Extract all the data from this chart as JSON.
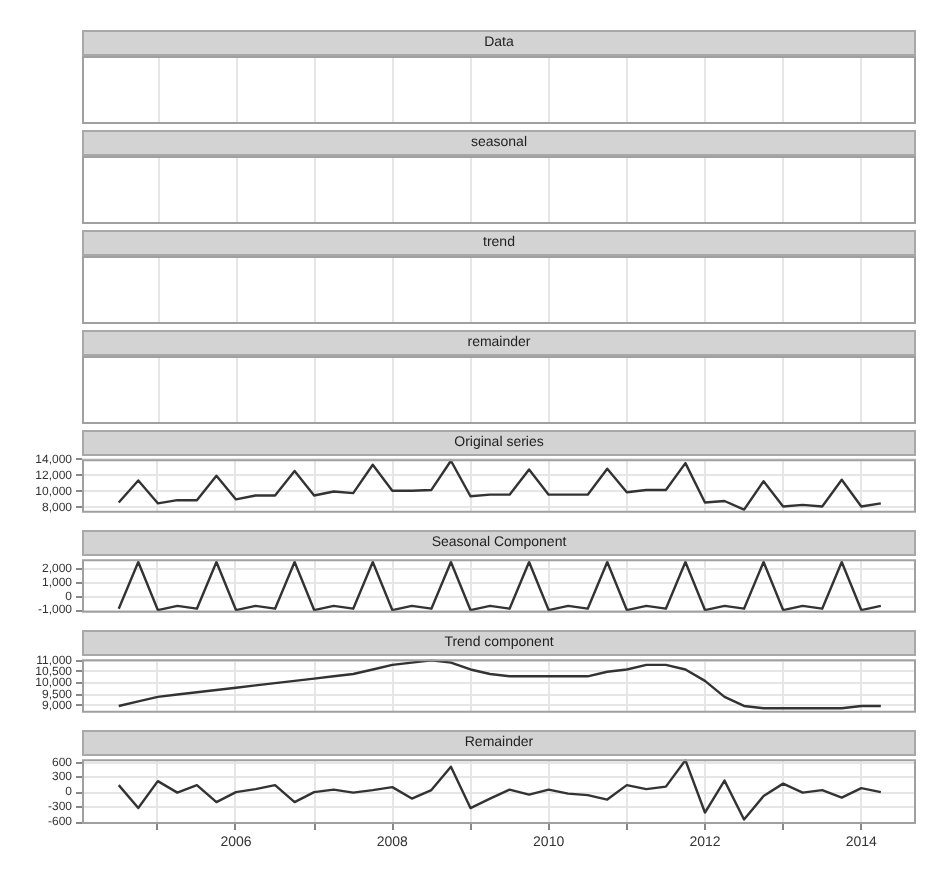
{
  "chart_data": [
    {
      "type": "other",
      "title": "Data"
    },
    {
      "type": "other",
      "title": "seasonal"
    },
    {
      "type": "other",
      "title": "trend"
    },
    {
      "type": "other",
      "title": "remainder"
    },
    {
      "type": "line",
      "title": "Original series",
      "xlim": [
        2004.03,
        2014.7
      ],
      "xticks": [
        {
          "value": 2005,
          "label": null
        },
        {
          "value": 2006,
          "label": null
        },
        {
          "value": 2007,
          "label": null
        },
        {
          "value": 2008,
          "label": null
        },
        {
          "value": 2009,
          "label": null
        },
        {
          "value": 2010,
          "label": null
        },
        {
          "value": 2011,
          "label": null
        },
        {
          "value": 2012,
          "label": null
        },
        {
          "value": 2013,
          "label": null
        },
        {
          "value": 2014,
          "label": null
        }
      ],
      "tick_labels": "y",
      "grid": true,
      "marker": "none",
      "ylim": [
        7300,
        14100
      ],
      "yticks": [
        {
          "value": 8000,
          "label": "8,000"
        },
        {
          "value": 10000,
          "label": "10,000"
        },
        {
          "value": 12000,
          "label": "12,000"
        },
        {
          "value": 14000,
          "label": "14,000"
        }
      ],
      "color": "#333333",
      "x": [
        2004.5,
        2004.75,
        2005,
        2005.25,
        2005.5,
        2005.75,
        2006,
        2006.25,
        2006.5,
        2006.75,
        2007,
        2007.25,
        2007.5,
        2007.75,
        2008,
        2008.25,
        2008.5,
        2008.75,
        2009,
        2009.25,
        2009.5,
        2009.75,
        2010,
        2010.25,
        2010.5,
        2010.75,
        2011,
        2011.25,
        2011.5,
        2011.75,
        2012,
        2012.25,
        2012.5,
        2012.75,
        2013,
        2013.25,
        2013.5,
        2013.75,
        2014,
        2014.25
      ],
      "values": [
        8600,
        11400,
        8500,
        8900,
        8900,
        12000,
        9000,
        9500,
        9500,
        12600,
        9500,
        10000,
        9800,
        13400,
        10100,
        10100,
        10200,
        13900,
        9400,
        9600,
        9600,
        12800,
        9600,
        9600,
        9600,
        12900,
        9900,
        10200,
        10200,
        13600,
        8600,
        8800,
        7700,
        11300,
        8100,
        8300,
        8100,
        11500,
        8100,
        8500
      ]
    },
    {
      "type": "line",
      "title": "Seasonal Component",
      "xlim": [
        2004.03,
        2014.7
      ],
      "xticks": [
        {
          "value": 2005,
          "label": null
        },
        {
          "value": 2006,
          "label": null
        },
        {
          "value": 2007,
          "label": null
        },
        {
          "value": 2008,
          "label": null
        },
        {
          "value": 2009,
          "label": null
        },
        {
          "value": 2010,
          "label": null
        },
        {
          "value": 2011,
          "label": null
        },
        {
          "value": 2012,
          "label": null
        },
        {
          "value": 2013,
          "label": null
        },
        {
          "value": 2014,
          "label": null
        }
      ],
      "tick_labels": "y",
      "grid": true,
      "marker": "none",
      "ylim": [
        -1200,
        2700
      ],
      "yticks": [
        {
          "value": -1000,
          "label": "-1,000"
        },
        0,
        {
          "value": 1000,
          "label": "1,000"
        },
        {
          "value": 2000,
          "label": "2,000"
        }
      ],
      "color": "#333333",
      "x": [
        2004.5,
        2004.75,
        2005,
        2005.25,
        2005.5,
        2005.75,
        2006,
        2006.25,
        2006.5,
        2006.75,
        2007,
        2007.25,
        2007.5,
        2007.75,
        2008,
        2008.25,
        2008.5,
        2008.75,
        2009,
        2009.25,
        2009.5,
        2009.75,
        2010,
        2010.25,
        2010.5,
        2010.75,
        2011,
        2011.25,
        2011.5,
        2011.75,
        2012,
        2012.25,
        2012.5,
        2012.75,
        2013,
        2013.25,
        2013.5,
        2013.75,
        2014,
        2014.25
      ],
      "values": [
        -900,
        2500,
        -1000,
        -700,
        -900,
        2500,
        -1000,
        -700,
        -900,
        2500,
        -1000,
        -700,
        -900,
        2500,
        -1000,
        -700,
        -900,
        2500,
        -1000,
        -700,
        -900,
        2500,
        -1000,
        -700,
        -900,
        2500,
        -1000,
        -700,
        -900,
        2500,
        -1000,
        -700,
        -900,
        2500,
        -1000,
        -700,
        -900,
        2500,
        -1000,
        -700
      ]
    },
    {
      "type": "line",
      "title": "Trend component",
      "xlim": [
        2004.03,
        2014.7
      ],
      "xticks": [
        {
          "value": 2005,
          "label": null
        },
        {
          "value": 2006,
          "label": null
        },
        {
          "value": 2007,
          "label": null
        },
        {
          "value": 2008,
          "label": null
        },
        {
          "value": 2009,
          "label": null
        },
        {
          "value": 2010,
          "label": null
        },
        {
          "value": 2011,
          "label": null
        },
        {
          "value": 2012,
          "label": null
        },
        {
          "value": 2013,
          "label": null
        },
        {
          "value": 2014,
          "label": null
        }
      ],
      "tick_labels": "y",
      "grid": true,
      "marker": "none",
      "ylim": [
        8700,
        11050
      ],
      "yticks": [
        {
          "value": 9000,
          "label": "9,000"
        },
        {
          "value": 9500,
          "label": "9,500"
        },
        {
          "value": 10000,
          "label": "10,000"
        },
        {
          "value": 10500,
          "label": "10,500"
        },
        {
          "value": 11000,
          "label": "11,000"
        }
      ],
      "color": "#333333",
      "x": [
        2004.5,
        2004.75,
        2005,
        2005.25,
        2005.5,
        2005.75,
        2006,
        2006.25,
        2006.5,
        2006.75,
        2007,
        2007.25,
        2007.5,
        2007.75,
        2008,
        2008.25,
        2008.5,
        2008.75,
        2009,
        2009.25,
        2009.5,
        2009.75,
        2010,
        2010.25,
        2010.5,
        2010.75,
        2011,
        2011.25,
        2011.5,
        2011.75,
        2012,
        2012.25,
        2012.5,
        2012.75,
        2013,
        2013.25,
        2013.5,
        2013.75,
        2014,
        2014.25
      ],
      "values": [
        9000,
        9200,
        9400,
        9500,
        9600,
        9700,
        9800,
        9900,
        10000,
        10100,
        10200,
        10300,
        10400,
        10600,
        10800,
        10900,
        11000,
        10900,
        10600,
        10400,
        10300,
        10300,
        10300,
        10300,
        10300,
        10500,
        10600,
        10800,
        10800,
        10600,
        10100,
        9400,
        9000,
        8900,
        8900,
        8900,
        8900,
        8900,
        9000,
        9000
      ]
    },
    {
      "type": "line",
      "title": "Remainder",
      "xlim": [
        2004.03,
        2014.7
      ],
      "xticks": [
        {
          "value": 2005,
          "label": null
        },
        2006,
        {
          "value": 2007,
          "label": null
        },
        2008,
        {
          "value": 2009,
          "label": null
        },
        2010,
        {
          "value": 2011,
          "label": null
        },
        2012,
        {
          "value": 2013,
          "label": null
        },
        2014
      ],
      "grid": true,
      "marker": "none",
      "ylim": [
        -640,
        660
      ],
      "yticks": [
        -600,
        -300,
        0,
        300,
        600
      ],
      "color": "#333333",
      "x": [
        2004.5,
        2004.75,
        2005,
        2005.25,
        2005.5,
        2005.75,
        2006,
        2006.25,
        2006.5,
        2006.75,
        2007,
        2007.25,
        2007.5,
        2007.75,
        2008,
        2008.25,
        2008.5,
        2008.75,
        2009,
        2009.25,
        2009.5,
        2009.75,
        2010,
        2010.25,
        2010.5,
        2010.75,
        2011,
        2011.25,
        2011.5,
        2011.75,
        2012,
        2012.25,
        2012.5,
        2012.75,
        2013,
        2013.25,
        2013.5,
        2013.75,
        2014,
        2014.25
      ],
      "values": [
        140,
        -320,
        220,
        -10,
        140,
        -200,
        0,
        60,
        140,
        -200,
        0,
        50,
        -10,
        40,
        100,
        -130,
        40,
        510,
        -320,
        -130,
        50,
        -50,
        50,
        -30,
        -60,
        -150,
        140,
        60,
        110,
        640,
        -410,
        230,
        -550,
        -80,
        170,
        -10,
        40,
        -110,
        80,
        0
      ]
    }
  ]
}
